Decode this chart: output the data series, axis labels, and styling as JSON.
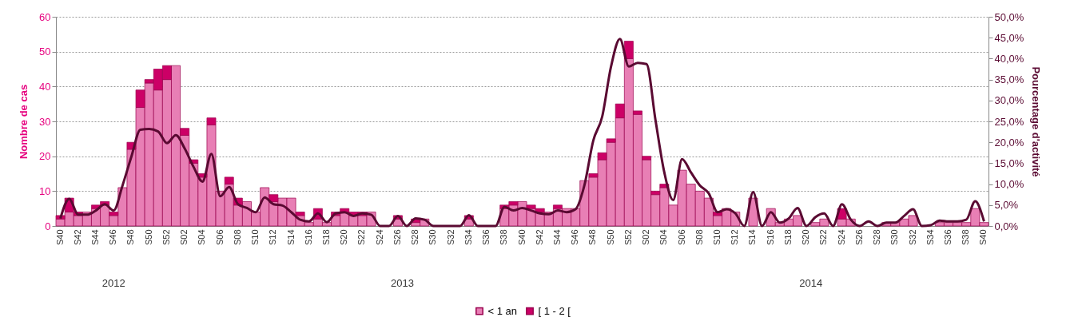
{
  "chart_data": {
    "type": "bar",
    "stacked": true,
    "ylabel": "Nombre de cas",
    "y2label": "Pourcentage d'activité",
    "ylim": [
      0,
      60
    ],
    "yticks": [
      0,
      10,
      20,
      30,
      40,
      50,
      60
    ],
    "y2lim": [
      0,
      50
    ],
    "y2ticks": [
      {
        "value": 0,
        "label": "0,0%"
      },
      {
        "value": 5,
        "label": "5,0%"
      },
      {
        "value": 10,
        "label": "10,0%"
      },
      {
        "value": 15,
        "label": "15,0%"
      },
      {
        "value": 20,
        "label": "20,0%"
      },
      {
        "value": 25,
        "label": "25,0%"
      },
      {
        "value": 30,
        "label": "30,0%"
      },
      {
        "value": 35,
        "label": "35,0%"
      },
      {
        "value": 40,
        "label": "40,0%"
      },
      {
        "value": 45,
        "label": "45,0%"
      },
      {
        "value": 50,
        "label": "50,0%"
      }
    ],
    "grid": "y",
    "legend": "bottom",
    "categories": [
      "S40",
      null,
      "S42",
      null,
      "S44",
      null,
      "S46",
      null,
      "S48",
      null,
      "S50",
      null,
      "S52",
      null,
      "S02",
      null,
      "S04",
      null,
      "S06",
      null,
      "S08",
      null,
      "S10",
      null,
      "S12",
      null,
      "S14",
      null,
      "S16",
      null,
      "S18",
      null,
      "S20",
      null,
      "S22",
      null,
      "S24",
      null,
      "S26",
      null,
      "S28",
      null,
      "S30",
      null,
      "S32",
      null,
      "S34",
      null,
      "S36",
      null,
      "S38",
      null,
      "S40",
      null,
      "S42",
      null,
      "S44",
      null,
      "S46",
      null,
      "S48",
      null,
      "S50",
      null,
      "S52",
      null,
      "S02",
      null,
      "S04",
      null,
      "S06",
      null,
      "S08",
      null,
      "S10",
      null,
      "S12",
      null,
      "S14",
      null,
      "S16",
      null,
      "S18",
      null,
      "S20",
      null,
      "S22",
      null,
      "S24",
      null,
      "S26",
      null,
      "S28",
      null,
      "S30",
      null,
      "S32",
      null,
      "S34",
      null,
      "S36",
      null,
      "S38",
      null,
      "S40"
    ],
    "annotations": [
      "2012",
      "2013",
      "2014"
    ],
    "series": [
      {
        "name": "< 1 an",
        "color": "#e87fb5",
        "values": [
          2,
          4,
          3,
          4,
          5,
          6,
          3,
          11,
          22,
          34,
          41,
          39,
          42,
          46,
          26,
          18,
          14,
          29,
          10,
          12,
          6,
          7,
          4,
          11,
          7,
          8,
          8,
          3,
          1,
          2,
          1,
          3,
          4,
          3,
          3,
          4,
          0,
          0,
          2,
          0,
          1,
          2,
          0,
          0,
          0,
          0,
          2,
          0,
          0,
          0,
          5,
          6,
          7,
          5,
          4,
          4,
          5,
          5,
          5,
          13,
          14,
          19,
          24,
          31,
          48,
          32,
          19,
          9,
          11,
          6,
          16,
          12,
          10,
          8,
          3,
          5,
          4,
          0,
          8,
          0,
          5,
          1,
          2,
          3,
          0,
          1,
          2,
          0,
          2,
          2,
          0,
          0,
          0,
          1,
          1,
          2,
          3,
          0,
          0,
          1,
          1,
          1,
          1,
          5,
          1
        ]
      },
      {
        "name": "[ 1 - 2 [",
        "color": "#cc0066",
        "values": [
          1,
          4,
          1,
          0,
          1,
          1,
          1,
          0,
          2,
          5,
          1,
          6,
          4,
          0,
          2,
          1,
          1,
          2,
          0,
          2,
          2,
          0,
          0,
          0,
          2,
          0,
          0,
          1,
          0,
          3,
          0,
          1,
          1,
          1,
          1,
          0,
          0,
          0,
          1,
          0,
          1,
          0,
          0,
          0,
          0,
          0,
          1,
          0,
          0,
          0,
          1,
          1,
          0,
          1,
          1,
          0,
          1,
          0,
          0,
          0,
          1,
          2,
          1,
          4,
          5,
          1,
          1,
          1,
          1,
          0,
          0,
          0,
          0,
          0,
          1,
          0,
          0,
          0,
          0,
          0,
          0,
          0,
          0,
          0,
          0,
          0,
          0,
          0,
          3,
          0,
          0,
          0,
          0,
          0,
          0,
          0,
          0,
          0,
          0,
          0,
          0,
          0,
          0,
          0,
          0
        ]
      },
      {
        "type": "line",
        "axis": "y2",
        "color": "#5a0a32",
        "values": [
          1.8,
          6.5,
          2.7,
          2.7,
          3.7,
          5.2,
          3.7,
          9.7,
          16.6,
          23.0,
          23.2,
          22.6,
          19.8,
          21.7,
          18.5,
          14.1,
          10.6,
          17.2,
          7.1,
          9.3,
          5.2,
          4.3,
          3.3,
          6.8,
          5.2,
          4.9,
          3.3,
          1.5,
          1.1,
          3.0,
          0.9,
          3.0,
          3.3,
          2.4,
          3.0,
          2.7,
          0,
          0,
          2.4,
          0,
          1.8,
          1.5,
          0,
          0,
          0,
          0,
          2.6,
          0,
          0,
          0,
          4.6,
          3.7,
          4.3,
          3.7,
          3.0,
          2.8,
          3.7,
          3.3,
          4.0,
          9.7,
          20.4,
          26.1,
          38.1,
          44.7,
          38.1,
          39.0,
          38.7,
          25.4,
          12.8,
          6.2,
          16.0,
          12.8,
          9.7,
          7.8,
          3.3,
          4.0,
          3.0,
          0,
          8.1,
          0,
          3.3,
          0.8,
          1.8,
          4.3,
          0,
          2.1,
          3.0,
          0,
          5.2,
          1.5,
          0,
          1.1,
          0,
          0.8,
          0.8,
          2.4,
          4.0,
          0,
          0.2,
          1.3,
          1.1,
          1.1,
          1.5,
          5.9,
          1.1
        ]
      }
    ]
  }
}
